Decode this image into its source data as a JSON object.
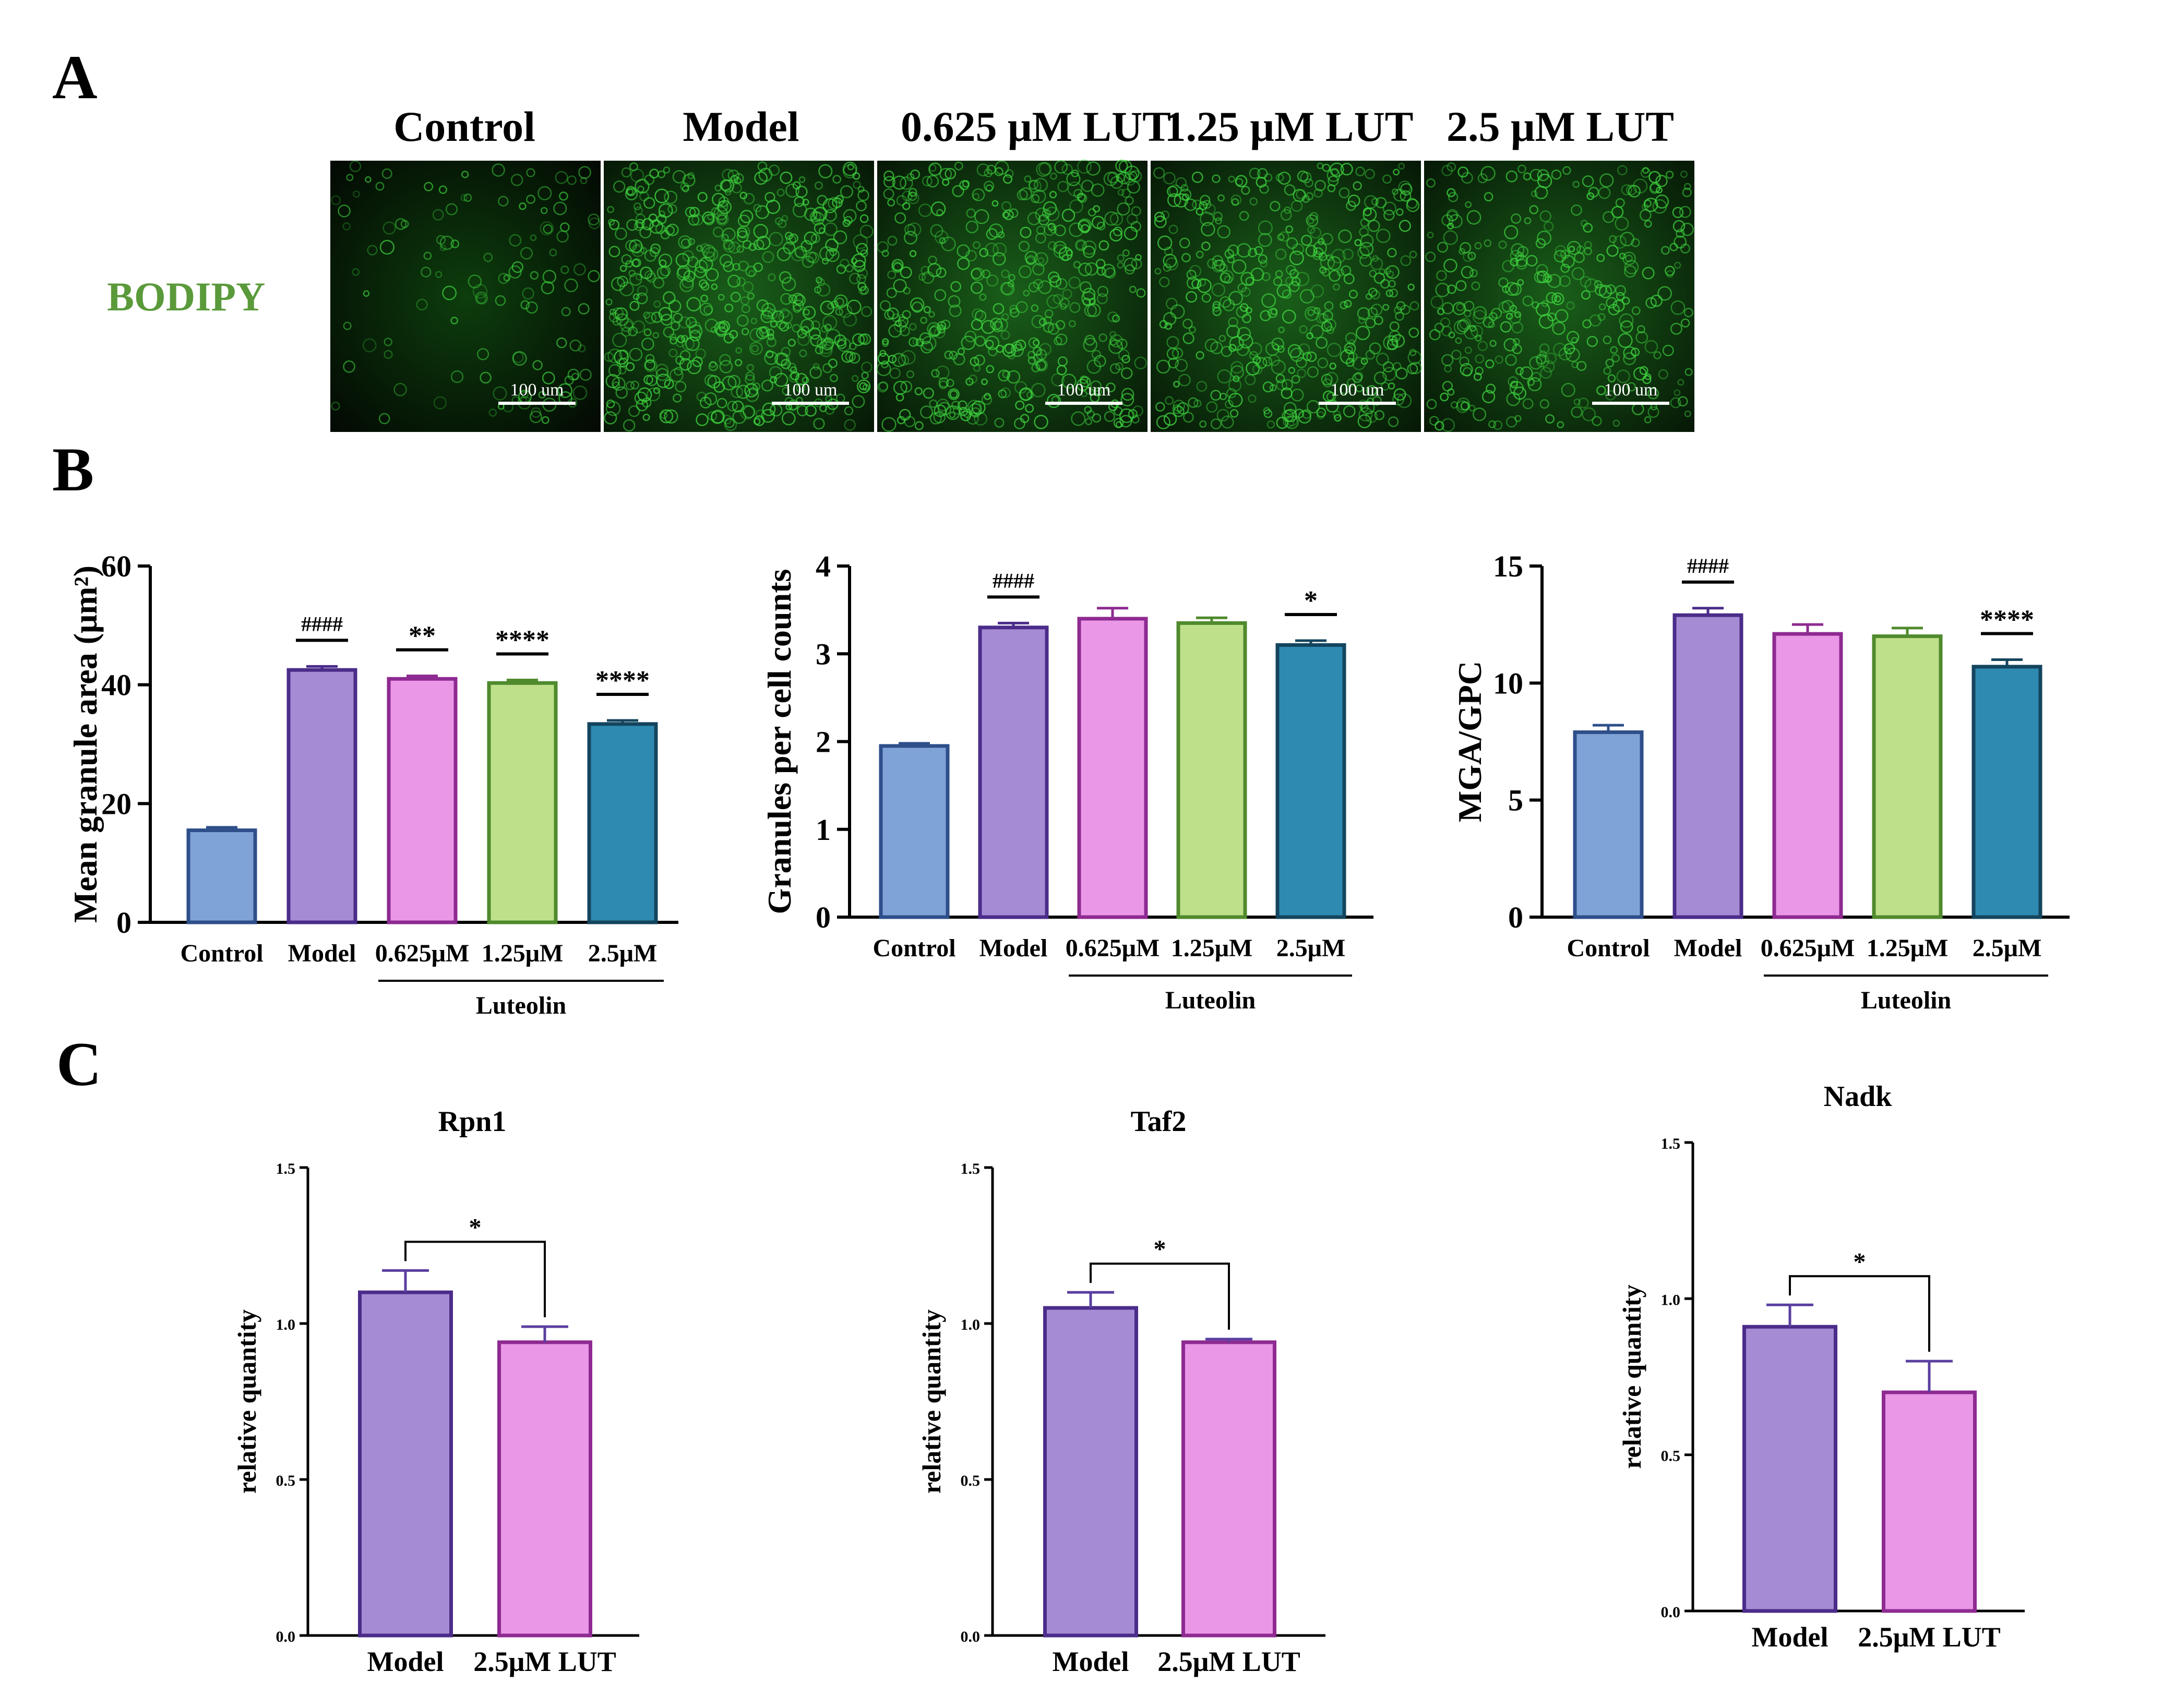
{
  "panel_labels": {
    "a": "A",
    "b": "B",
    "c": "C"
  },
  "panel_a": {
    "row_label": "BODIPY",
    "columns": [
      "Control",
      "Model",
      "0.625 μM LUT",
      "1.25 μM LUT",
      "2.5 μM LUT"
    ],
    "scale_bar_label": "100 um"
  },
  "colors": {
    "control": "#7fa3d6",
    "control_edge": "#2e4f8a",
    "model": "#a58bd3",
    "model_edge": "#4b2c8a",
    "lut0625": "#ea97e8",
    "lut0625_edge": "#8e2a91",
    "lut125": "#bfe08a",
    "lut125_edge": "#4f8a2c",
    "lut25": "#2e8ab1",
    "lut25_edge": "#14455e",
    "bodipy_label": "#5a9a3a",
    "error_bar": "#5a3fa0"
  },
  "chart_data": [
    {
      "type": "bar",
      "panel": "B",
      "ylabel": "Mean granule area (μm²)",
      "ylim": [
        0,
        60
      ],
      "yticks": [
        "0",
        "20",
        "40",
        "60"
      ],
      "categories": [
        "Control",
        "Model",
        "0.625μM",
        "1.25μM",
        "2.5μM"
      ],
      "group_label": "Luteolin",
      "values": [
        15.5,
        42.5,
        41.0,
        40.3,
        33.4
      ],
      "errors": [
        0.5,
        0.6,
        0.5,
        0.5,
        0.6
      ],
      "annotations": [
        "",
        "####",
        "**",
        "****",
        "****"
      ]
    },
    {
      "type": "bar",
      "panel": "B",
      "ylabel": "Granules per cell counts",
      "ylim": [
        0,
        4
      ],
      "yticks": [
        "0",
        "1",
        "2",
        "3",
        "4"
      ],
      "categories": [
        "Control",
        "Model",
        "0.625μM",
        "1.25μM",
        "2.5μM"
      ],
      "group_label": "Luteolin",
      "values": [
        1.95,
        3.3,
        3.4,
        3.35,
        3.1
      ],
      "errors": [
        0.03,
        0.05,
        0.12,
        0.06,
        0.05
      ],
      "annotations": [
        "",
        "####",
        "",
        "",
        "*"
      ]
    },
    {
      "type": "bar",
      "panel": "B",
      "ylabel": "MGA/GPC",
      "ylim": [
        0,
        15
      ],
      "yticks": [
        "0",
        "5",
        "10",
        "15"
      ],
      "categories": [
        "Control",
        "Model",
        "0.625μM",
        "1.25μM",
        "2.5μM"
      ],
      "group_label": "Luteolin",
      "values": [
        7.9,
        12.9,
        12.1,
        12.0,
        10.7
      ],
      "errors": [
        0.3,
        0.3,
        0.4,
        0.35,
        0.3
      ],
      "annotations": [
        "",
        "####",
        "",
        "",
        "****"
      ]
    },
    {
      "type": "bar",
      "panel": "C",
      "title": "Rpn1",
      "ylabel": "relative quantity",
      "ylim": [
        0,
        1.5
      ],
      "yticks": [
        "0.0",
        "0.5",
        "1.0",
        "1.5"
      ],
      "categories": [
        "Model",
        "2.5μM LUT"
      ],
      "values": [
        1.1,
        0.94
      ],
      "errors": [
        0.07,
        0.05
      ],
      "significance": "*"
    },
    {
      "type": "bar",
      "panel": "C",
      "title": "Taf2",
      "ylabel": "relative quantity",
      "ylim": [
        0,
        1.5
      ],
      "yticks": [
        "0.0",
        "0.5",
        "1.0",
        "1.5"
      ],
      "categories": [
        "Model",
        "2.5μM LUT"
      ],
      "values": [
        1.05,
        0.94
      ],
      "errors": [
        0.05,
        0.01
      ],
      "significance": "*"
    },
    {
      "type": "bar",
      "panel": "C",
      "title": "Nadk",
      "ylabel": "relative quantity",
      "ylim": [
        0,
        1.5
      ],
      "yticks": [
        "0.0",
        "0.5",
        "1.0",
        "1.5"
      ],
      "categories": [
        "Model",
        "2.5μM LUT"
      ],
      "values": [
        0.91,
        0.7
      ],
      "errors": [
        0.07,
        0.1
      ],
      "significance": "*"
    }
  ]
}
